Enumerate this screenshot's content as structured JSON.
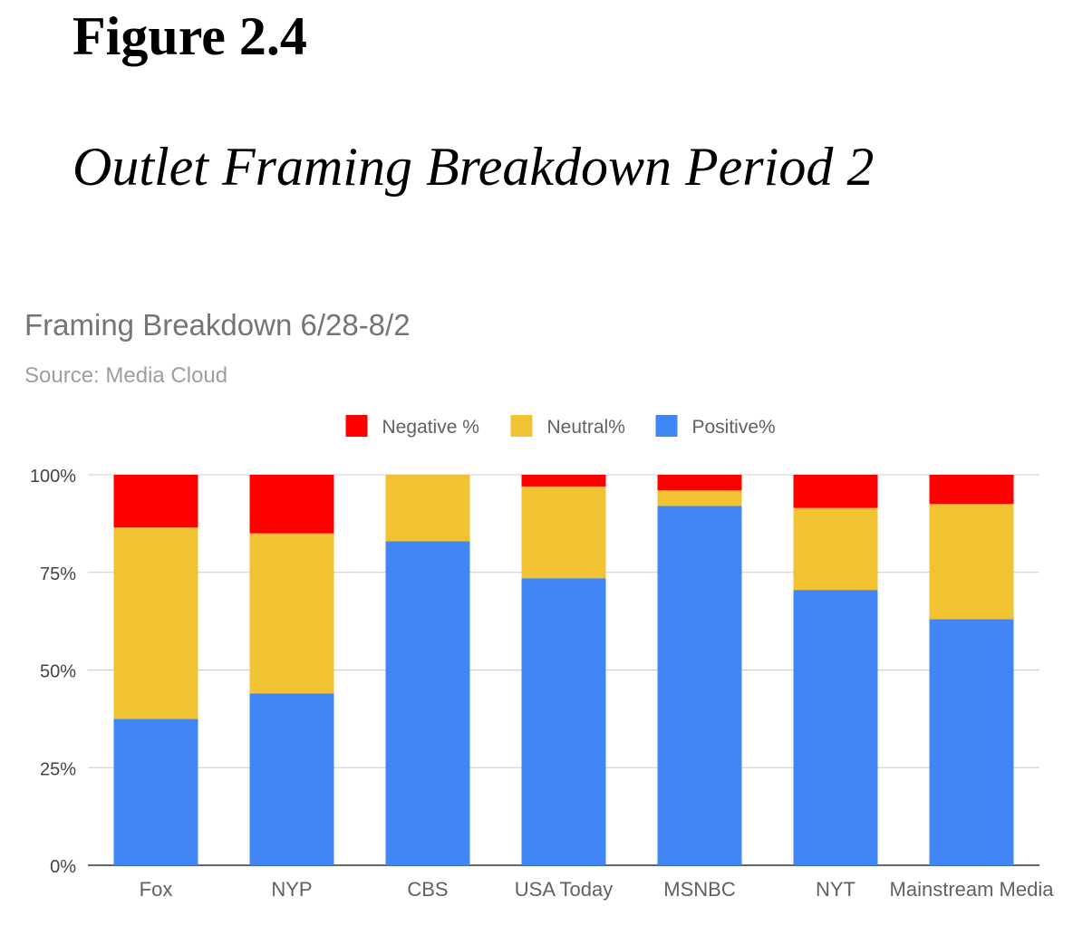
{
  "figure": {
    "label": "Figure 2.4",
    "caption": "Outlet Framing Breakdown Period 2"
  },
  "chart_data": {
    "type": "bar",
    "stacked": true,
    "title": "Framing Breakdown 6/28-8/2",
    "subtitle": "Source: Media Cloud",
    "categories": [
      "Fox",
      "NYP",
      "CBS",
      "USA Today",
      "MSNBC",
      "NYT",
      "Mainstream Media"
    ],
    "series": [
      {
        "name": "Positive%",
        "color": "#4285f4",
        "values": [
          37.5,
          44,
          83,
          73.5,
          92,
          70.5,
          63
        ]
      },
      {
        "name": "Neutral%",
        "color": "#f1c232",
        "values": [
          49,
          41,
          17,
          23.5,
          4,
          21,
          29.5
        ]
      },
      {
        "name": "Negative %",
        "color": "#ff0000",
        "values": [
          13.5,
          15,
          0,
          3,
          4,
          8.5,
          7.5
        ]
      }
    ],
    "legend_order": [
      "Negative %",
      "Neutral%",
      "Positive%"
    ],
    "legend_position": "top",
    "y_ticks": [
      "0%",
      "25%",
      "50%",
      "75%",
      "100%"
    ],
    "ylim": [
      0,
      100
    ],
    "grid": true
  }
}
